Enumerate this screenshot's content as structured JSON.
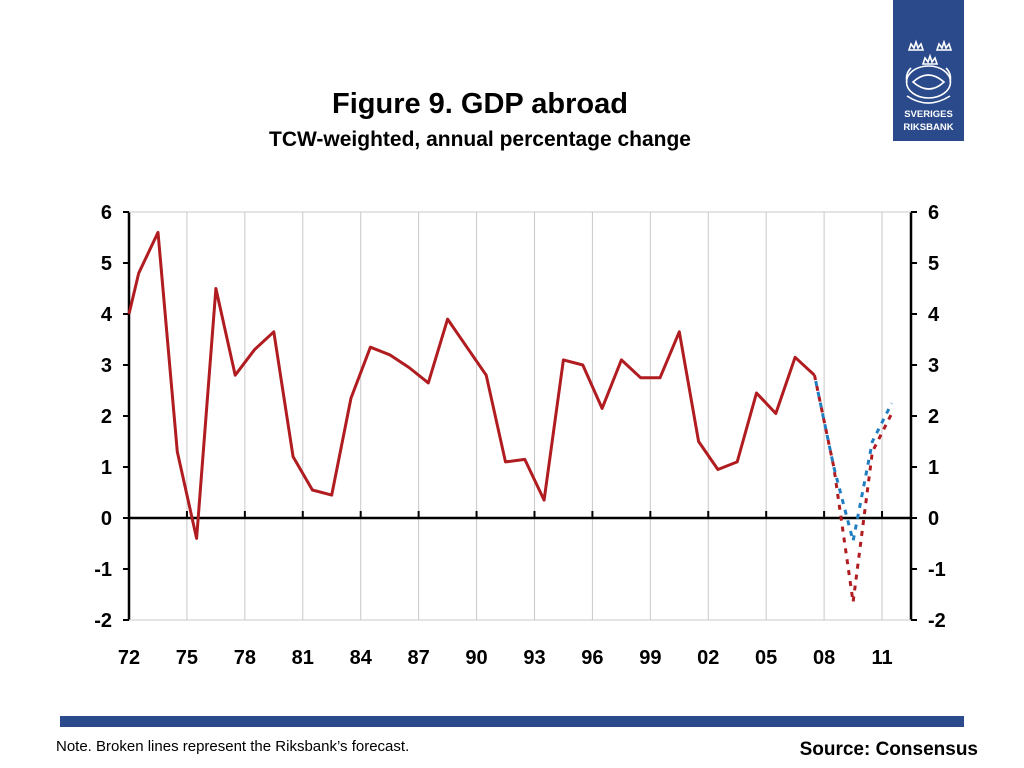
{
  "title": "Figure 9. GDP abroad",
  "subtitle": "TCW-weighted, annual percentage change",
  "logo": {
    "line1": "SVERIGES",
    "line2": "RIKSBANK",
    "color": "#2a4a8c"
  },
  "note": "Note. Broken lines represent the Riksbank’s forecast.",
  "source": "Source: Consensus",
  "chart_data": {
    "type": "line",
    "title": "Figure 9. GDP abroad",
    "subtitle": "TCW-weighted, annual percentage change",
    "xlabel": "",
    "ylabel": "",
    "x_tick_labels": [
      "72",
      "75",
      "78",
      "81",
      "84",
      "87",
      "90",
      "93",
      "96",
      "99",
      "02",
      "05",
      "08",
      "11"
    ],
    "x_tick_years": [
      1972,
      1975,
      1978,
      1981,
      1984,
      1987,
      1990,
      1993,
      1996,
      1999,
      2002,
      2005,
      2008,
      2011
    ],
    "xlim": [
      1972,
      2012.5
    ],
    "ylim": [
      -2,
      6
    ],
    "y_ticks": [
      -2,
      -1,
      0,
      1,
      2,
      3,
      4,
      5,
      6
    ],
    "y_ticks_both_sides": true,
    "grid": "vertical",
    "legend": "none",
    "series": [
      {
        "style": "solid",
        "color": "#b01c20",
        "x": [
          1972,
          1972.5,
          1973.5,
          1974.5,
          1975.5,
          1976.5,
          1977.5,
          1978.5,
          1979.5,
          1980.5,
          1981.5,
          1982.5,
          1983.5,
          1984.5,
          1985.5,
          1986.5,
          1987.5,
          1988.5,
          1989.5,
          1990.5,
          1991.5,
          1992.5,
          1993.5,
          1994.5,
          1995.5,
          1996.5,
          1997.5,
          1998.5,
          1999.5,
          2000.5,
          2001.5,
          2002.5,
          2003.5,
          2004.5,
          2005.5,
          2006.5,
          2007.5
        ],
        "y": [
          4.0,
          4.8,
          5.6,
          1.3,
          -0.4,
          4.5,
          2.8,
          3.3,
          3.65,
          1.2,
          0.55,
          0.45,
          2.35,
          3.35,
          3.2,
          2.95,
          2.65,
          3.9,
          3.35,
          2.8,
          1.1,
          1.15,
          0.35,
          3.1,
          3.0,
          2.15,
          3.1,
          2.75,
          2.75,
          3.65,
          1.5,
          0.95,
          1.1,
          2.45,
          2.05,
          3.15,
          2.8
        ]
      },
      {
        "style": "dotted",
        "color": "#b01c20",
        "x": [
          2007.5,
          2008.5,
          2009.5,
          2010.5,
          2011.5
        ],
        "y": [
          2.8,
          1.0,
          -1.65,
          1.3,
          2.05
        ]
      },
      {
        "style": "dotted",
        "color": "#1f7dc2",
        "x": [
          2007.5,
          2008.5,
          2009.5,
          2010.5,
          2011.5
        ],
        "y": [
          2.8,
          1.0,
          -0.45,
          1.5,
          2.25
        ]
      }
    ]
  }
}
